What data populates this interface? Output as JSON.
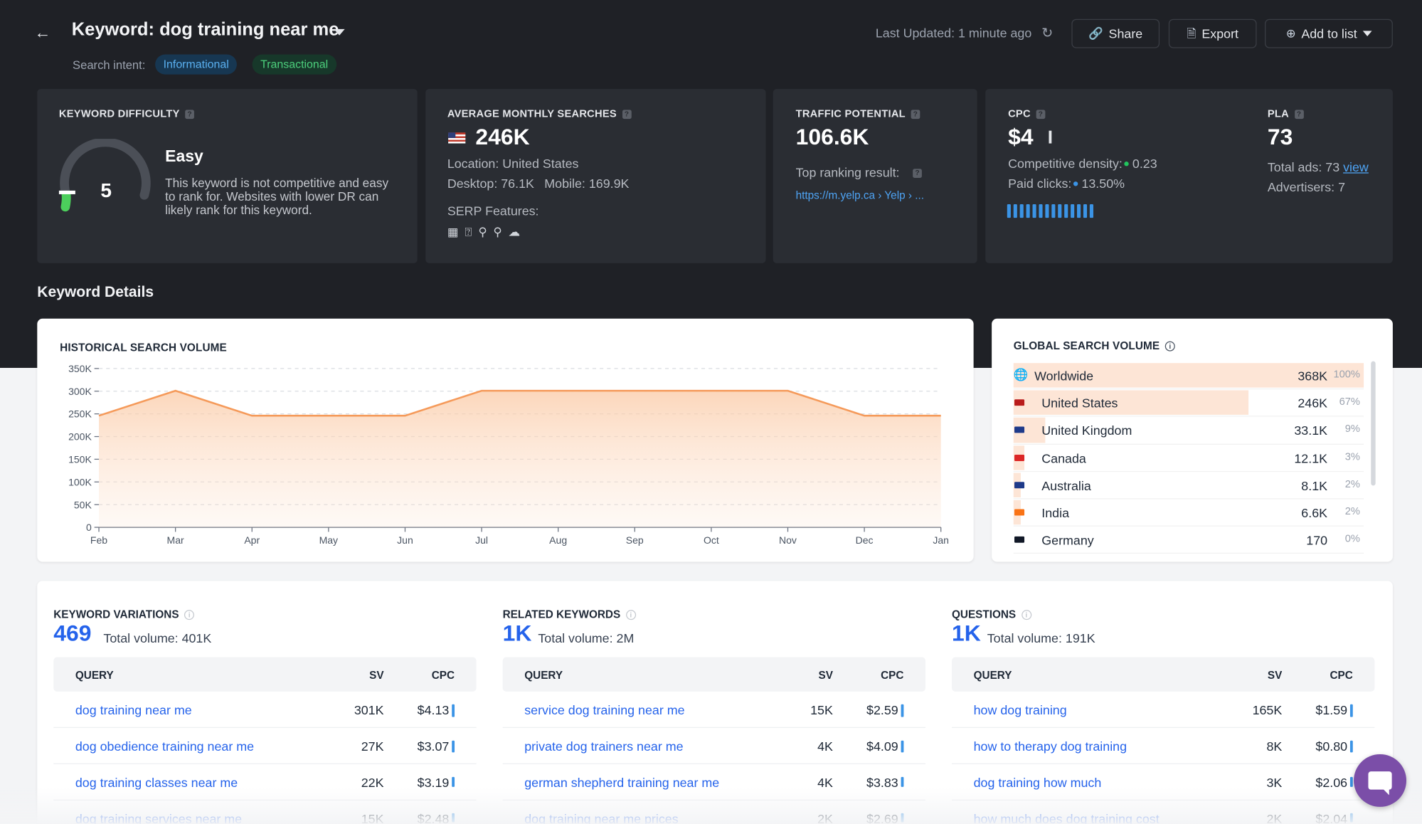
{
  "header": {
    "title": "Keyword: dog training near me",
    "intent_label": "Search intent:",
    "intents": [
      "Informational",
      "Transactional"
    ],
    "last_updated": "Last Updated: 1 minute ago",
    "share_label": "Share",
    "export_label": "Export",
    "add_label": "Add to list"
  },
  "keyword_difficulty": {
    "label": "KEYWORD DIFFICULTY",
    "score": "5",
    "level": "Easy",
    "description": "This keyword is not competitive and easy to rank for. Websites with lower DR can likely rank for this keyword."
  },
  "monthly_searches": {
    "label": "AVERAGE MONTHLY SEARCHES",
    "value": "246K",
    "location": "Location: United States",
    "desktop": "Desktop: 76.1K",
    "mobile": "Mobile: 169.9K",
    "serp_label": "SERP Features:",
    "serp_icons": [
      "image-icon",
      "question-icon",
      "map-pin-icon",
      "search-icon",
      "reviews-icon"
    ]
  },
  "traffic_potential": {
    "label": "TRAFFIC POTENTIAL",
    "value": "106.6K",
    "top_result_label": "Top ranking result:",
    "top_result_link": "https://m.yelp.ca › Yelp › ..."
  },
  "cpc": {
    "label": "CPC",
    "value": "$4",
    "density_label": "Competitive density:",
    "density_value": "0.23",
    "paid_label": "Paid clicks:",
    "paid_value": "13.50%",
    "density_color": "#22c55e",
    "paid_color": "#3b94e6"
  },
  "pla": {
    "label": "PLA",
    "value": "73",
    "total_ads_label": "Total ads: 73",
    "view_label": "view",
    "advertisers": "Advertisers: 7"
  },
  "section_title": "Keyword Details",
  "historical": {
    "label": "HISTORICAL SEARCH VOLUME",
    "accent": "#f59a5a"
  },
  "chart_data": {
    "type": "area",
    "title": "HISTORICAL SEARCH VOLUME",
    "categories": [
      "Feb",
      "Mar",
      "Apr",
      "May",
      "Jun",
      "Jul",
      "Aug",
      "Sep",
      "Oct",
      "Nov",
      "Dec",
      "Jan"
    ],
    "x": [
      "Feb",
      "Mar",
      "Apr",
      "Jun",
      "Jul",
      "Nov",
      "Dec",
      "Jan"
    ],
    "values": [
      246000,
      301000,
      246000,
      246000,
      301000,
      301000,
      246000,
      246000
    ],
    "y_ticks": [
      "0",
      "50K",
      "100K",
      "150K",
      "200K",
      "250K",
      "300K",
      "350K"
    ],
    "ylim": [
      0,
      350000
    ],
    "grid": true
  },
  "global": {
    "label": "GLOBAL SEARCH VOLUME",
    "rows": [
      {
        "name": "Worldwide",
        "value": "368K",
        "pct": "100%",
        "share": 1.0,
        "icon": "globe-icon",
        "flag": "#ffffff"
      },
      {
        "name": "United States",
        "value": "246K",
        "pct": "67%",
        "share": 0.67,
        "icon": "flag-us-icon",
        "flag": "#b91c1c"
      },
      {
        "name": "United Kingdom",
        "value": "33.1K",
        "pct": "9%",
        "share": 0.09,
        "icon": "flag-uk-icon",
        "flag": "#1e3a8a"
      },
      {
        "name": "Canada",
        "value": "12.1K",
        "pct": "3%",
        "share": 0.03,
        "icon": "flag-ca-icon",
        "flag": "#dc2626"
      },
      {
        "name": "Australia",
        "value": "8.1K",
        "pct": "2%",
        "share": 0.02,
        "icon": "flag-au-icon",
        "flag": "#1e3a8a"
      },
      {
        "name": "India",
        "value": "6.6K",
        "pct": "2%",
        "share": 0.02,
        "icon": "flag-in-icon",
        "flag": "#f97316"
      },
      {
        "name": "Germany",
        "value": "170",
        "pct": "0%",
        "share": 0.0,
        "icon": "flag-de-icon",
        "flag": "#111827"
      }
    ]
  },
  "variations": {
    "label": "KEYWORD VARIATIONS",
    "count": "469",
    "total": "Total volume: 401K",
    "headers": [
      "QUERY",
      "SV",
      "CPC"
    ],
    "rows": [
      {
        "q": "dog training near me",
        "sv": "301K",
        "cpc": "$4.13"
      },
      {
        "q": "dog obedience training near me",
        "sv": "27K",
        "cpc": "$3.07"
      },
      {
        "q": "dog training classes near me",
        "sv": "22K",
        "cpc": "$3.19"
      },
      {
        "q": "dog training services near me",
        "sv": "15K",
        "cpc": "$2.48"
      }
    ]
  },
  "related": {
    "label": "RELATED KEYWORDS",
    "count": "1K",
    "total": "Total volume: 2M",
    "headers": [
      "QUERY",
      "SV",
      "CPC"
    ],
    "rows": [
      {
        "q": "service dog training near me",
        "sv": "15K",
        "cpc": "$2.59"
      },
      {
        "q": "private dog trainers near me",
        "sv": "4K",
        "cpc": "$4.09"
      },
      {
        "q": "german shepherd training near me",
        "sv": "4K",
        "cpc": "$3.83"
      },
      {
        "q": "dog training near me prices",
        "sv": "2K",
        "cpc": "$2.69"
      }
    ]
  },
  "questions": {
    "label": "QUESTIONS",
    "count": "1K",
    "total": "Total volume: 191K",
    "headers": [
      "QUERY",
      "SV",
      "CPC"
    ],
    "rows": [
      {
        "q": "how dog training",
        "sv": "165K",
        "cpc": "$1.59"
      },
      {
        "q": "how to therapy dog training",
        "sv": "8K",
        "cpc": "$0.80"
      },
      {
        "q": "dog training how much",
        "sv": "3K",
        "cpc": "$2.06"
      },
      {
        "q": "how much does dog training cost",
        "sv": "2K",
        "cpc": "$2.04"
      }
    ]
  }
}
